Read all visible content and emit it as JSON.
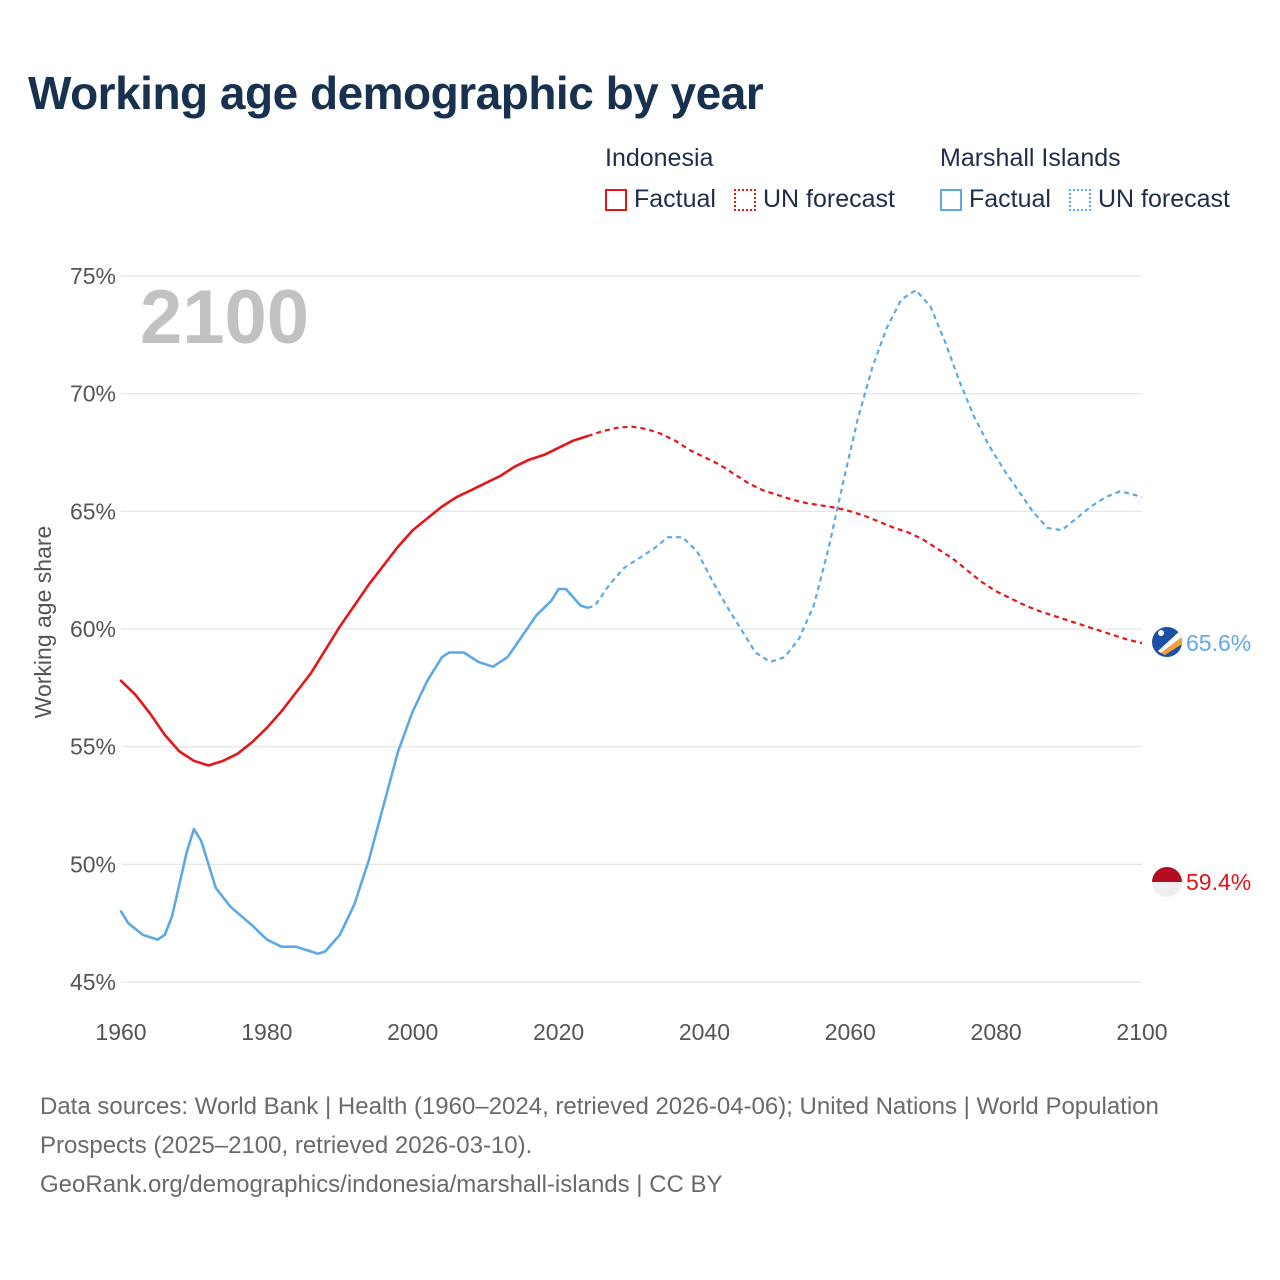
{
  "title": "Working age demographic by year",
  "legend": {
    "groups": [
      {
        "country": "Indonesia",
        "factual": "Factual",
        "forecast": "UN forecast"
      },
      {
        "country": "Marshall Islands",
        "factual": "Factual",
        "forecast": "UN forecast"
      }
    ]
  },
  "year_label": "2100",
  "footer": {
    "sources": "Data sources: World Bank | Health (1960–2024, retrieved 2026-04-06); United Nations | World Population Prospects (2025–2100, retrieved 2026-03-10).",
    "url": "GeoRank.org/demographics/indonesia/marshall-islands | CC BY"
  },
  "colors": {
    "indonesia": "#e3161b",
    "marshall_islands": "#5fa8e6",
    "grid": "#e3e3e3",
    "axis_text": "#555555",
    "year_watermark": "#c2c2c2"
  },
  "chart_data": {
    "type": "line",
    "title": "Working age demographic by year",
    "xlabel": "",
    "ylabel": "Working age share",
    "xlim": [
      1960,
      2100
    ],
    "ylim": [
      45,
      75
    ],
    "x_ticks": [
      1960,
      1980,
      2000,
      2020,
      2040,
      2060,
      2080,
      2100
    ],
    "y_ticks": [
      45,
      50,
      55,
      60,
      65,
      70,
      75
    ],
    "y_tick_labels": [
      "45%",
      "50%",
      "55%",
      "60%",
      "65%",
      "70%",
      "75%"
    ],
    "factual_end_year": 2024,
    "series": [
      {
        "name": "Indonesia",
        "color": "#e3161b",
        "end_label": "59.4%",
        "points": [
          [
            1960,
            57.8
          ],
          [
            1962,
            57.2
          ],
          [
            1964,
            56.4
          ],
          [
            1966,
            55.5
          ],
          [
            1968,
            54.8
          ],
          [
            1970,
            54.4
          ],
          [
            1972,
            54.2
          ],
          [
            1974,
            54.4
          ],
          [
            1976,
            54.7
          ],
          [
            1978,
            55.2
          ],
          [
            1980,
            55.8
          ],
          [
            1982,
            56.5
          ],
          [
            1984,
            57.3
          ],
          [
            1986,
            58.1
          ],
          [
            1988,
            59.1
          ],
          [
            1990,
            60.1
          ],
          [
            1992,
            61.0
          ],
          [
            1994,
            61.9
          ],
          [
            1996,
            62.7
          ],
          [
            1998,
            63.5
          ],
          [
            2000,
            64.2
          ],
          [
            2002,
            64.7
          ],
          [
            2004,
            65.2
          ],
          [
            2006,
            65.6
          ],
          [
            2008,
            65.9
          ],
          [
            2010,
            66.2
          ],
          [
            2012,
            66.5
          ],
          [
            2014,
            66.9
          ],
          [
            2016,
            67.2
          ],
          [
            2018,
            67.4
          ],
          [
            2020,
            67.7
          ],
          [
            2022,
            68.0
          ],
          [
            2024,
            68.2
          ],
          [
            2026,
            68.4
          ],
          [
            2028,
            68.55
          ],
          [
            2030,
            68.6
          ],
          [
            2032,
            68.5
          ],
          [
            2034,
            68.3
          ],
          [
            2036,
            68.0
          ],
          [
            2038,
            67.6
          ],
          [
            2040,
            67.3
          ],
          [
            2042,
            67.0
          ],
          [
            2044,
            66.6
          ],
          [
            2046,
            66.2
          ],
          [
            2048,
            65.9
          ],
          [
            2050,
            65.7
          ],
          [
            2052,
            65.5
          ],
          [
            2054,
            65.35
          ],
          [
            2056,
            65.25
          ],
          [
            2058,
            65.15
          ],
          [
            2060,
            65.0
          ],
          [
            2062,
            64.8
          ],
          [
            2064,
            64.55
          ],
          [
            2066,
            64.3
          ],
          [
            2068,
            64.1
          ],
          [
            2070,
            63.8
          ],
          [
            2072,
            63.4
          ],
          [
            2074,
            63.0
          ],
          [
            2076,
            62.5
          ],
          [
            2078,
            62.0
          ],
          [
            2080,
            61.6
          ],
          [
            2082,
            61.3
          ],
          [
            2084,
            61.0
          ],
          [
            2086,
            60.75
          ],
          [
            2088,
            60.55
          ],
          [
            2090,
            60.35
          ],
          [
            2092,
            60.15
          ],
          [
            2094,
            59.95
          ],
          [
            2096,
            59.75
          ],
          [
            2098,
            59.55
          ],
          [
            2100,
            59.4
          ]
        ]
      },
      {
        "name": "Marshall Islands",
        "color": "#5fa8e6",
        "end_label": "65.6%",
        "points": [
          [
            1960,
            48.0
          ],
          [
            1961,
            47.5
          ],
          [
            1963,
            47.0
          ],
          [
            1965,
            46.8
          ],
          [
            1966,
            47.0
          ],
          [
            1967,
            47.8
          ],
          [
            1969,
            50.5
          ],
          [
            1970,
            51.5
          ],
          [
            1971,
            51.0
          ],
          [
            1973,
            49.0
          ],
          [
            1975,
            48.2
          ],
          [
            1978,
            47.4
          ],
          [
            1980,
            46.8
          ],
          [
            1982,
            46.5
          ],
          [
            1984,
            46.5
          ],
          [
            1986,
            46.3
          ],
          [
            1987,
            46.2
          ],
          [
            1988,
            46.3
          ],
          [
            1990,
            47.0
          ],
          [
            1992,
            48.3
          ],
          [
            1994,
            50.2
          ],
          [
            1996,
            52.5
          ],
          [
            1998,
            54.8
          ],
          [
            2000,
            56.5
          ],
          [
            2002,
            57.8
          ],
          [
            2004,
            58.8
          ],
          [
            2005,
            59.0
          ],
          [
            2007,
            59.0
          ],
          [
            2009,
            58.6
          ],
          [
            2011,
            58.4
          ],
          [
            2013,
            58.8
          ],
          [
            2015,
            59.7
          ],
          [
            2017,
            60.6
          ],
          [
            2019,
            61.2
          ],
          [
            2020,
            61.7
          ],
          [
            2021,
            61.7
          ],
          [
            2023,
            61.0
          ],
          [
            2024,
            60.9
          ],
          [
            2025,
            61.0
          ],
          [
            2027,
            61.9
          ],
          [
            2029,
            62.6
          ],
          [
            2031,
            63.0
          ],
          [
            2033,
            63.4
          ],
          [
            2035,
            63.9
          ],
          [
            2037,
            63.9
          ],
          [
            2039,
            63.3
          ],
          [
            2041,
            62.1
          ],
          [
            2043,
            61.0
          ],
          [
            2045,
            60.0
          ],
          [
            2047,
            59.0
          ],
          [
            2049,
            58.6
          ],
          [
            2051,
            58.8
          ],
          [
            2053,
            59.6
          ],
          [
            2055,
            61.0
          ],
          [
            2057,
            63.4
          ],
          [
            2059,
            66.2
          ],
          [
            2061,
            68.9
          ],
          [
            2063,
            71.1
          ],
          [
            2065,
            72.8
          ],
          [
            2067,
            74.0
          ],
          [
            2069,
            74.4
          ],
          [
            2071,
            73.7
          ],
          [
            2073,
            72.2
          ],
          [
            2075,
            70.5
          ],
          [
            2077,
            69.0
          ],
          [
            2079,
            67.8
          ],
          [
            2081,
            66.8
          ],
          [
            2083,
            65.9
          ],
          [
            2085,
            65.0
          ],
          [
            2087,
            64.3
          ],
          [
            2089,
            64.2
          ],
          [
            2091,
            64.7
          ],
          [
            2093,
            65.2
          ],
          [
            2095,
            65.6
          ],
          [
            2097,
            65.85
          ],
          [
            2099,
            65.7
          ],
          [
            2100,
            65.6
          ]
        ]
      }
    ]
  }
}
